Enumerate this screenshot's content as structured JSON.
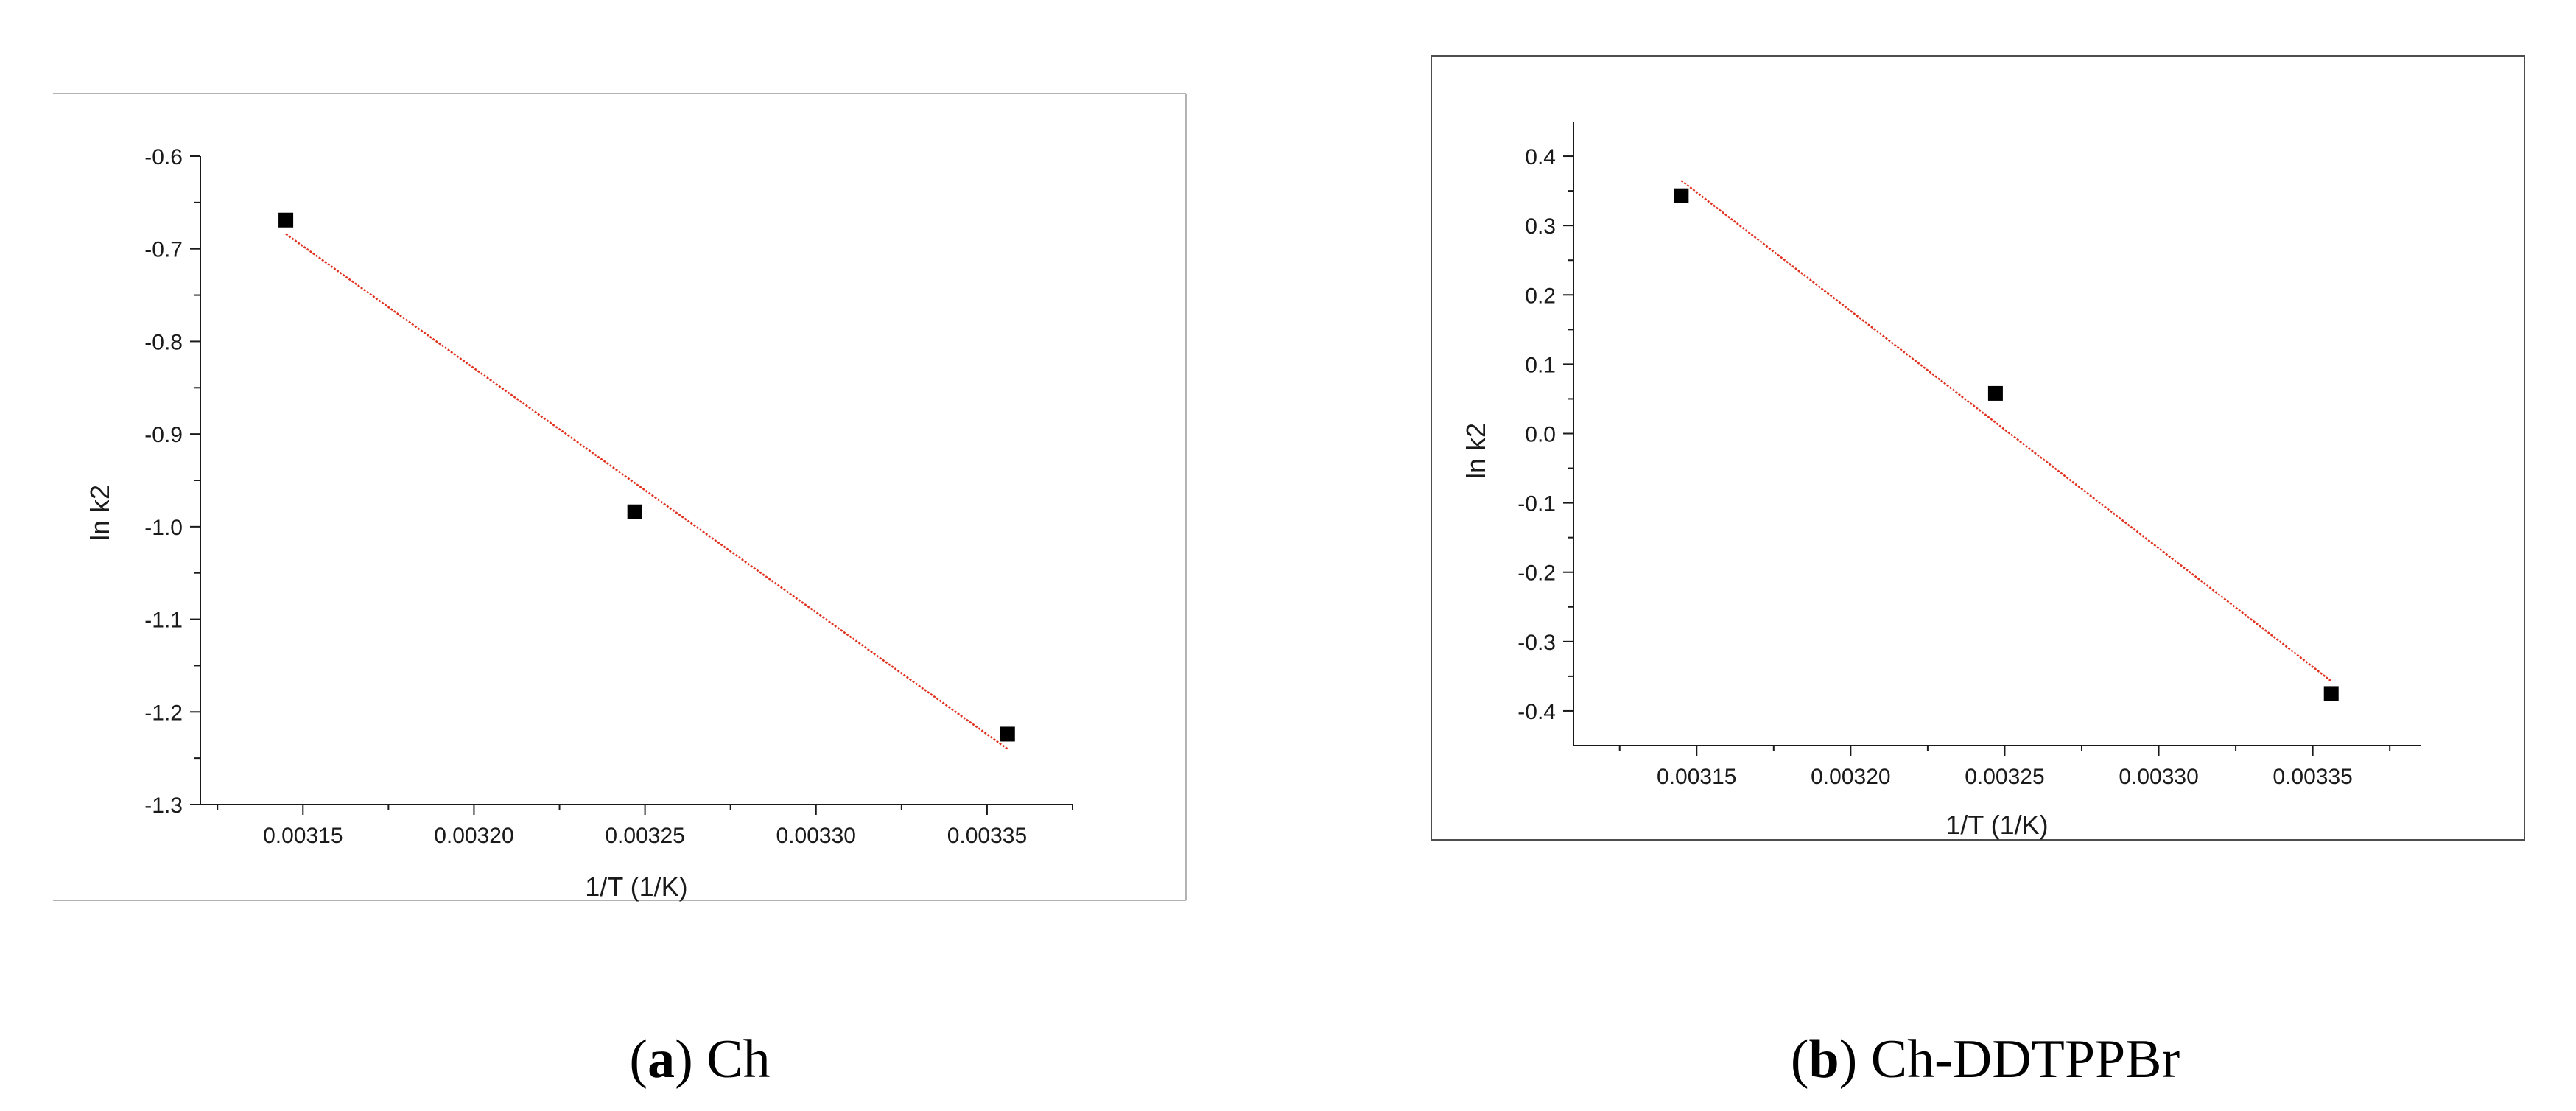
{
  "chart_data": [
    {
      "type": "scatter",
      "caption": {
        "letter": "a",
        "label": "Ch"
      },
      "xlabel": "1/T (1/K)",
      "ylabel": "ln k2",
      "xlim": [
        0.00312,
        0.003375
      ],
      "ylim": [
        -1.3,
        -0.6
      ],
      "xticks": [
        {
          "value": 0.00315,
          "label": "0.00315"
        },
        {
          "value": 0.0032,
          "label": "0.00320"
        },
        {
          "value": 0.00325,
          "label": "0.00325"
        },
        {
          "value": 0.0033,
          "label": "0.00330"
        },
        {
          "value": 0.00335,
          "label": "0.00335"
        }
      ],
      "yticks": [
        {
          "value": -0.6,
          "label": "-0.6"
        },
        {
          "value": -0.7,
          "label": "-0.7"
        },
        {
          "value": -0.8,
          "label": "-0.8"
        },
        {
          "value": -0.9,
          "label": "-0.9"
        },
        {
          "value": -1.0,
          "label": "-1.0"
        },
        {
          "value": -1.1,
          "label": "-1.1"
        },
        {
          "value": -1.2,
          "label": "-1.2"
        },
        {
          "value": -1.3,
          "label": "-1.3"
        }
      ],
      "points": [
        {
          "x": 0.003145,
          "y": -0.669
        },
        {
          "x": 0.003247,
          "y": -0.984
        },
        {
          "x": 0.003356,
          "y": -1.224
        }
      ],
      "fit_line": {
        "x": [
          0.003145,
          0.003356
        ],
        "y": [
          -0.684,
          -1.24
        ]
      },
      "grid": false,
      "colors": {
        "points": "#000000",
        "fit_line": "#e0301e"
      }
    },
    {
      "type": "scatter",
      "caption": {
        "letter": "b",
        "label": "Ch-DDTPPBr"
      },
      "xlabel": "1/T (1/K)",
      "ylabel": "ln k2",
      "xlim": [
        0.00311,
        0.003385
      ],
      "ylim": [
        -0.45,
        0.45
      ],
      "xticks": [
        {
          "value": 0.00315,
          "label": "0.00315"
        },
        {
          "value": 0.0032,
          "label": "0.00320"
        },
        {
          "value": 0.00325,
          "label": "0.00325"
        },
        {
          "value": 0.0033,
          "label": "0.00330"
        },
        {
          "value": 0.00335,
          "label": "0.00335"
        }
      ],
      "yticks": [
        {
          "value": 0.4,
          "label": "0.4"
        },
        {
          "value": 0.3,
          "label": "0.3"
        },
        {
          "value": 0.2,
          "label": "0.2"
        },
        {
          "value": 0.1,
          "label": "0.1"
        },
        {
          "value": 0.0,
          "label": "0.0"
        },
        {
          "value": -0.1,
          "label": "-0.1"
        },
        {
          "value": -0.2,
          "label": "-0.2"
        },
        {
          "value": -0.3,
          "label": "-0.3"
        },
        {
          "value": -0.4,
          "label": "-0.4"
        }
      ],
      "points": [
        {
          "x": 0.003145,
          "y": 0.343
        },
        {
          "x": 0.003247,
          "y": 0.058
        },
        {
          "x": 0.003356,
          "y": -0.375
        }
      ],
      "fit_line": {
        "x": [
          0.003145,
          0.003356
        ],
        "y": [
          0.365,
          -0.357
        ]
      },
      "grid": false,
      "colors": {
        "points": "#000000",
        "fit_line": "#e0301e"
      }
    }
  ]
}
